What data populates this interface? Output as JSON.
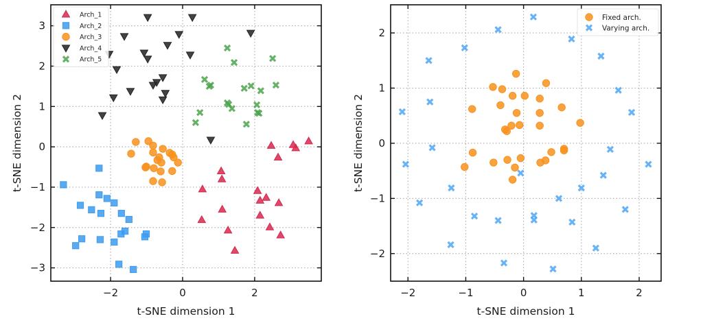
{
  "chart_data": [
    {
      "type": "scatter",
      "xlabel": "t-SNE dimension 1",
      "ylabel": "t-SNE dimension 2",
      "xlim": [
        -3.66,
        3.85
      ],
      "ylim": [
        -3.33,
        3.52
      ],
      "xticks": [
        -2,
        0,
        2
      ],
      "yticks": [
        -3,
        -2,
        -1,
        0,
        1,
        2,
        3
      ],
      "xtick_labels": [
        "−2",
        "0",
        "2"
      ],
      "ytick_labels": [
        "−3",
        "−2",
        "−1",
        "0",
        "1",
        "2",
        "3"
      ],
      "grid": true,
      "legend_position": "top-left",
      "series": [
        {
          "name": "Arch_1",
          "marker": "triangle-up",
          "color": "#d6294f",
          "points": [
            [
              2.46,
              0.03
            ],
            [
              3.07,
              0.05
            ],
            [
              3.14,
              -0.03
            ],
            [
              3.5,
              0.14
            ],
            [
              2.65,
              -0.26
            ],
            [
              1.07,
              -0.6
            ],
            [
              1.09,
              -0.8
            ],
            [
              0.55,
              -1.05
            ],
            [
              2.08,
              -1.09
            ],
            [
              2.15,
              -1.33
            ],
            [
              2.32,
              -1.26
            ],
            [
              2.67,
              -1.39
            ],
            [
              1.1,
              -1.55
            ],
            [
              0.53,
              -1.81
            ],
            [
              2.15,
              -1.7
            ],
            [
              1.26,
              -2.07
            ],
            [
              2.42,
              -1.99
            ],
            [
              2.72,
              -2.19
            ],
            [
              1.45,
              -2.57
            ]
          ]
        },
        {
          "name": "Arch_2",
          "marker": "square",
          "color": "#3d9bf0",
          "points": [
            [
              -2.32,
              -0.53
            ],
            [
              -3.31,
              -0.94
            ],
            [
              -2.32,
              -1.19
            ],
            [
              -2.1,
              -1.28
            ],
            [
              -1.9,
              -1.39
            ],
            [
              -2.84,
              -1.45
            ],
            [
              -2.53,
              -1.56
            ],
            [
              -2.27,
              -1.65
            ],
            [
              -1.7,
              -1.65
            ],
            [
              -1.49,
              -1.8
            ],
            [
              -1.6,
              -2.09
            ],
            [
              -1.71,
              -2.16
            ],
            [
              -1.01,
              -2.16
            ],
            [
              -1.05,
              -2.23
            ],
            [
              -2.8,
              -2.28
            ],
            [
              -2.29,
              -2.3
            ],
            [
              -2.97,
              -2.45
            ],
            [
              -1.9,
              -2.36
            ],
            [
              -1.77,
              -2.91
            ],
            [
              -1.37,
              -3.04
            ]
          ]
        },
        {
          "name": "Arch_3",
          "marker": "circle",
          "color": "#f7921e",
          "points": [
            [
              -1.3,
              0.12
            ],
            [
              -0.95,
              0.14
            ],
            [
              -0.82,
              0.03
            ],
            [
              -1.43,
              -0.17
            ],
            [
              -0.82,
              -0.14
            ],
            [
              -0.55,
              -0.05
            ],
            [
              -0.36,
              -0.15
            ],
            [
              -0.29,
              -0.19
            ],
            [
              -0.25,
              -0.26
            ],
            [
              -0.65,
              -0.26
            ],
            [
              -0.7,
              -0.33
            ],
            [
              -0.59,
              -0.39
            ],
            [
              -0.13,
              -0.39
            ],
            [
              -1.01,
              -0.49
            ],
            [
              -1.03,
              -0.51
            ],
            [
              -0.8,
              -0.53
            ],
            [
              -0.61,
              -0.61
            ],
            [
              -0.29,
              -0.6
            ],
            [
              -0.82,
              -0.85
            ],
            [
              -0.57,
              -0.88
            ]
          ]
        },
        {
          "name": "Arch_4",
          "marker": "triangle-down",
          "color": "#222222",
          "points": [
            [
              -0.97,
              3.21
            ],
            [
              -1.62,
              2.74
            ],
            [
              -0.1,
              2.79
            ],
            [
              -0.42,
              2.52
            ],
            [
              -2.04,
              2.3
            ],
            [
              -1.07,
              2.33
            ],
            [
              -0.97,
              2.18
            ],
            [
              -1.83,
              1.92
            ],
            [
              -0.55,
              1.72
            ],
            [
              -0.72,
              1.6
            ],
            [
              -0.82,
              1.53
            ],
            [
              -1.45,
              1.38
            ],
            [
              -0.48,
              1.33
            ],
            [
              -1.92,
              1.22
            ],
            [
              -0.55,
              1.17
            ],
            [
              -2.23,
              0.78
            ],
            [
              0.27,
              3.21
            ],
            [
              1.89,
              2.82
            ],
            [
              0.21,
              2.28
            ],
            [
              0.78,
              0.17
            ]
          ]
        },
        {
          "name": "Arch_5",
          "marker": "x",
          "color": "#4ba34b",
          "points": [
            [
              1.24,
              2.45
            ],
            [
              1.43,
              2.09
            ],
            [
              2.5,
              2.19
            ],
            [
              0.61,
              1.67
            ],
            [
              0.74,
              1.5
            ],
            [
              0.78,
              1.53
            ],
            [
              1.71,
              1.45
            ],
            [
              1.9,
              1.51
            ],
            [
              2.17,
              1.39
            ],
            [
              2.59,
              1.53
            ],
            [
              1.24,
              1.09
            ],
            [
              1.28,
              1.05
            ],
            [
              1.37,
              0.95
            ],
            [
              2.06,
              1.04
            ],
            [
              2.08,
              0.85
            ],
            [
              2.12,
              0.83
            ],
            [
              0.48,
              0.85
            ],
            [
              0.36,
              0.6
            ],
            [
              1.77,
              0.56
            ]
          ]
        }
      ]
    },
    {
      "type": "scatter",
      "xlabel": "t-SNE dimension 1",
      "ylabel": "t-SNE dimension 2",
      "xlim": [
        -2.3,
        2.38
      ],
      "ylim": [
        -2.5,
        2.51
      ],
      "xticks": [
        -2,
        -1,
        0,
        1,
        2
      ],
      "yticks": [
        -2,
        -1,
        0,
        1,
        2
      ],
      "xtick_labels": [
        "−2",
        "−1",
        "0",
        "1",
        "2"
      ],
      "ytick_labels": [
        "−2",
        "−1",
        "0",
        "1",
        "2"
      ],
      "grid": true,
      "legend_position": "top-right",
      "series": [
        {
          "name": "Fixed arch.",
          "marker": "circle",
          "color": "#f7921e",
          "points": [
            [
              -0.13,
              1.26
            ],
            [
              0.39,
              1.09
            ],
            [
              -0.53,
              1.02
            ],
            [
              -0.37,
              0.98
            ],
            [
              -0.19,
              0.86
            ],
            [
              0.02,
              0.86
            ],
            [
              0.28,
              0.81
            ],
            [
              -0.4,
              0.69
            ],
            [
              0.66,
              0.65
            ],
            [
              -0.89,
              0.62
            ],
            [
              -0.12,
              0.55
            ],
            [
              0.28,
              0.55
            ],
            [
              0.98,
              0.37
            ],
            [
              -0.21,
              0.32
            ],
            [
              -0.07,
              0.33
            ],
            [
              0.28,
              0.32
            ],
            [
              -0.32,
              0.25
            ],
            [
              -0.29,
              0.22
            ],
            [
              0.7,
              -0.1
            ],
            [
              0.7,
              -0.13
            ],
            [
              0.48,
              -0.16
            ],
            [
              -0.88,
              -0.17
            ],
            [
              -0.05,
              -0.27
            ],
            [
              0.38,
              -0.31
            ],
            [
              0.29,
              -0.35
            ],
            [
              -0.28,
              -0.3
            ],
            [
              -0.52,
              -0.35
            ],
            [
              -1.02,
              -0.43
            ],
            [
              -0.15,
              -0.44
            ],
            [
              -0.19,
              -0.66
            ]
          ]
        },
        {
          "name": "Varying arch.",
          "marker": "x",
          "color": "#4da6f5",
          "points": [
            [
              0.17,
              2.29
            ],
            [
              -0.44,
              2.06
            ],
            [
              0.83,
              1.89
            ],
            [
              -1.02,
              1.73
            ],
            [
              1.34,
              1.58
            ],
            [
              -1.64,
              1.5
            ],
            [
              1.64,
              0.96
            ],
            [
              -1.62,
              0.75
            ],
            [
              -2.1,
              0.57
            ],
            [
              1.87,
              0.56
            ],
            [
              -1.58,
              -0.08
            ],
            [
              1.5,
              -0.11
            ],
            [
              -2.04,
              -0.38
            ],
            [
              2.16,
              -0.38
            ],
            [
              1.38,
              -0.58
            ],
            [
              -0.05,
              -0.54
            ],
            [
              -1.25,
              -0.81
            ],
            [
              1.0,
              -0.81
            ],
            [
              -1.8,
              -1.08
            ],
            [
              0.61,
              -1.0
            ],
            [
              1.76,
              -1.2
            ],
            [
              -0.85,
              -1.32
            ],
            [
              0.18,
              -1.31
            ],
            [
              0.18,
              -1.39
            ],
            [
              -0.44,
              -1.4
            ],
            [
              0.84,
              -1.43
            ],
            [
              -1.26,
              -1.84
            ],
            [
              1.25,
              -1.9
            ],
            [
              -0.34,
              -2.17
            ],
            [
              0.51,
              -2.28
            ]
          ]
        }
      ]
    }
  ]
}
